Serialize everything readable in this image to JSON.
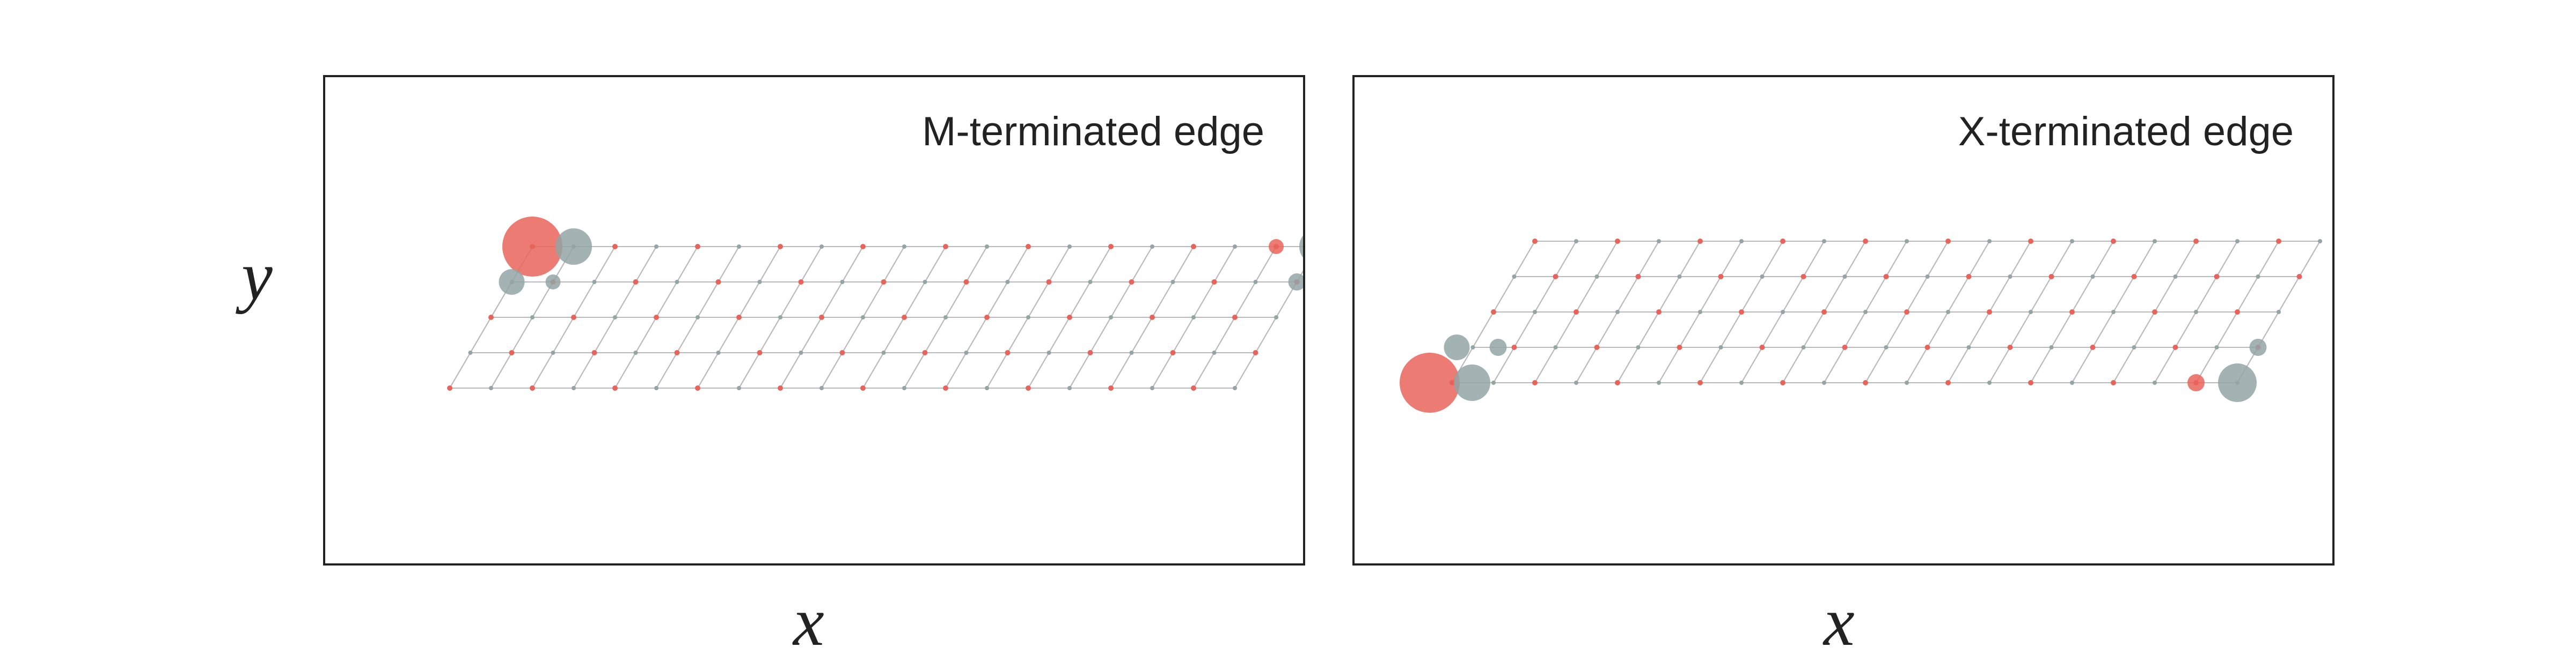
{
  "panels": [
    {
      "title": "M-terminated edge"
    },
    {
      "title": "X-terminated edge"
    }
  ],
  "axes": {
    "y_label": "y",
    "x_label": "x"
  },
  "colors": {
    "metal": "#e8645a",
    "chalcogen": "#93a5a5",
    "bond": "#b9b9b9",
    "frame": "#222222"
  }
}
